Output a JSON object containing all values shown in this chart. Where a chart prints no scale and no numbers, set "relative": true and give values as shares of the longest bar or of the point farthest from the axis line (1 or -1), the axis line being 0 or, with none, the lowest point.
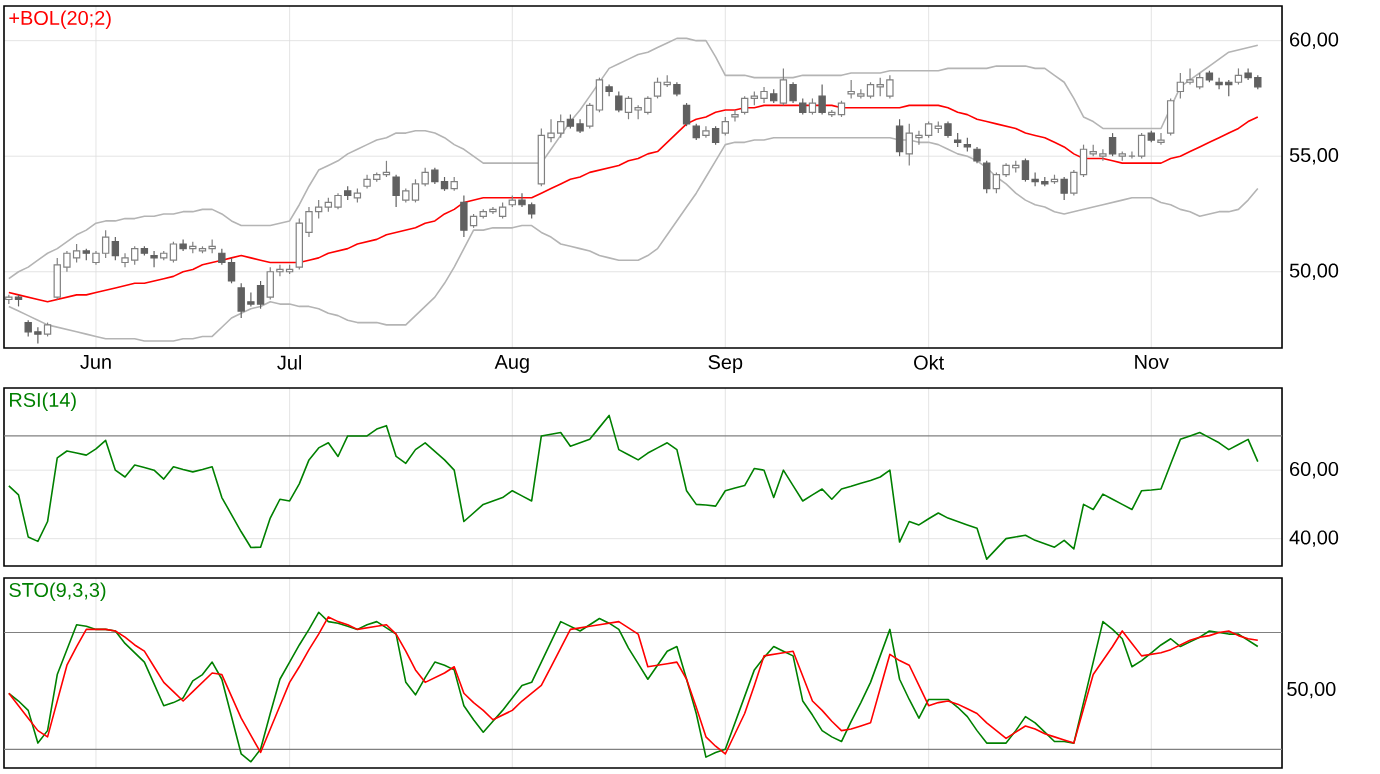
{
  "chart_data": [
    {
      "type": "candlestick",
      "title": "+BOL(20;2)",
      "categories": [
        null,
        null,
        null,
        null,
        null,
        null,
        null,
        null,
        null,
        "Jun",
        null,
        null,
        null,
        null,
        null,
        null,
        null,
        null,
        null,
        null,
        null,
        null,
        null,
        null,
        null,
        null,
        null,
        null,
        null,
        "Jul",
        null,
        null,
        null,
        null,
        null,
        null,
        null,
        null,
        null,
        null,
        null,
        null,
        null,
        null,
        null,
        null,
        null,
        null,
        null,
        null,
        null,
        null,
        "Aug",
        null,
        null,
        null,
        null,
        null,
        null,
        null,
        null,
        null,
        null,
        null,
        null,
        null,
        null,
        null,
        null,
        null,
        null,
        null,
        null,
        null,
        "Sep",
        null,
        null,
        null,
        null,
        null,
        null,
        null,
        null,
        null,
        null,
        null,
        null,
        null,
        null,
        null,
        null,
        null,
        null,
        null,
        null,
        "Okt",
        null,
        null,
        null,
        null,
        null,
        null,
        null,
        null,
        null,
        null,
        null,
        null,
        null,
        null,
        null,
        null,
        null,
        null,
        null,
        null,
        null,
        null,
        "Nov",
        null,
        null,
        null,
        null,
        null,
        null,
        null,
        null,
        null,
        null,
        null
      ],
      "ohlc": [
        [
          48.8,
          49.0,
          48.6,
          48.9
        ],
        [
          48.9,
          49.0,
          48.5,
          48.8
        ],
        [
          47.8,
          47.9,
          47.2,
          47.4
        ],
        [
          47.4,
          47.6,
          46.9,
          47.3
        ],
        [
          47.3,
          47.8,
          47.2,
          47.7
        ],
        [
          48.9,
          50.6,
          48.8,
          50.3
        ],
        [
          50.2,
          50.9,
          50.0,
          50.8
        ],
        [
          50.6,
          51.2,
          50.4,
          50.9
        ],
        [
          50.9,
          51.0,
          50.5,
          50.8
        ],
        [
          50.4,
          50.9,
          50.3,
          50.8
        ],
        [
          50.8,
          51.8,
          50.6,
          51.5
        ],
        [
          51.3,
          51.5,
          50.5,
          50.7
        ],
        [
          50.4,
          50.8,
          50.2,
          50.6
        ],
        [
          50.5,
          51.1,
          50.3,
          51.0
        ],
        [
          51.0,
          51.1,
          50.7,
          50.8
        ],
        [
          50.7,
          50.9,
          50.2,
          50.6
        ],
        [
          50.6,
          50.9,
          50.5,
          50.8
        ],
        [
          50.5,
          51.3,
          50.4,
          51.2
        ],
        [
          51.2,
          51.4,
          50.9,
          51.0
        ],
        [
          51.0,
          51.3,
          50.8,
          51.1
        ],
        [
          50.9,
          51.1,
          50.8,
          51.0
        ],
        [
          51.0,
          51.4,
          50.8,
          51.1
        ],
        [
          50.8,
          51.0,
          50.3,
          50.4
        ],
        [
          50.4,
          50.6,
          49.5,
          49.6
        ],
        [
          49.3,
          49.5,
          48.0,
          48.3
        ],
        [
          48.7,
          49.1,
          48.5,
          48.6
        ],
        [
          49.4,
          49.6,
          48.4,
          48.6
        ],
        [
          48.9,
          50.2,
          48.8,
          50.0
        ],
        [
          50.0,
          50.3,
          49.8,
          50.1
        ],
        [
          50.0,
          50.3,
          49.9,
          50.1
        ],
        [
          50.2,
          52.3,
          50.1,
          52.1
        ],
        [
          51.7,
          52.8,
          51.5,
          52.6
        ],
        [
          52.6,
          53.1,
          52.3,
          52.8
        ],
        [
          52.8,
          53.2,
          52.6,
          53.0
        ],
        [
          52.8,
          53.4,
          52.7,
          53.3
        ],
        [
          53.5,
          53.7,
          53.1,
          53.3
        ],
        [
          53.2,
          53.6,
          53.0,
          53.4
        ],
        [
          53.7,
          54.2,
          53.6,
          54.0
        ],
        [
          54.0,
          54.3,
          53.9,
          54.2
        ],
        [
          54.2,
          54.8,
          54.1,
          54.3
        ],
        [
          54.1,
          54.2,
          52.8,
          53.3
        ],
        [
          53.1,
          53.6,
          53.0,
          53.5
        ],
        [
          53.1,
          54.0,
          53.0,
          53.8
        ],
        [
          53.8,
          54.5,
          53.7,
          54.3
        ],
        [
          54.4,
          54.5,
          53.8,
          53.9
        ],
        [
          53.9,
          54.1,
          53.5,
          53.6
        ],
        [
          53.6,
          54.1,
          53.5,
          53.9
        ],
        [
          53.0,
          53.3,
          51.5,
          51.8
        ],
        [
          52.0,
          52.5,
          51.9,
          52.4
        ],
        [
          52.4,
          52.7,
          52.3,
          52.6
        ],
        [
          52.6,
          52.8,
          52.5,
          52.7
        ],
        [
          52.4,
          53.0,
          52.3,
          52.8
        ],
        [
          52.9,
          53.3,
          52.8,
          53.1
        ],
        [
          53.1,
          53.4,
          52.8,
          52.9
        ],
        [
          52.9,
          53.0,
          52.3,
          52.5
        ],
        [
          53.8,
          56.2,
          53.7,
          55.9
        ],
        [
          55.8,
          56.6,
          55.6,
          56.0
        ],
        [
          56.0,
          56.8,
          55.8,
          56.5
        ],
        [
          56.6,
          56.8,
          56.2,
          56.3
        ],
        [
          56.4,
          56.6,
          56.0,
          56.1
        ],
        [
          56.3,
          57.3,
          56.2,
          57.2
        ],
        [
          57.0,
          58.4,
          56.9,
          58.3
        ],
        [
          58.0,
          58.1,
          57.6,
          57.8
        ],
        [
          57.6,
          57.8,
          56.9,
          57.0
        ],
        [
          56.9,
          57.6,
          56.6,
          57.5
        ],
        [
          57.0,
          57.2,
          56.6,
          57.1
        ],
        [
          56.9,
          57.6,
          56.8,
          57.5
        ],
        [
          57.6,
          58.4,
          57.5,
          58.2
        ],
        [
          58.1,
          58.5,
          58.0,
          58.2
        ],
        [
          58.1,
          58.2,
          57.6,
          57.7
        ],
        [
          57.2,
          57.3,
          56.3,
          56.4
        ],
        [
          56.3,
          56.4,
          55.7,
          55.8
        ],
        [
          55.9,
          56.3,
          55.8,
          56.1
        ],
        [
          56.2,
          56.3,
          55.5,
          55.6
        ],
        [
          56.0,
          56.7,
          55.9,
          56.5
        ],
        [
          56.7,
          57.0,
          56.5,
          56.8
        ],
        [
          56.9,
          57.6,
          56.8,
          57.5
        ],
        [
          57.5,
          57.8,
          57.2,
          57.6
        ],
        [
          57.5,
          58.0,
          57.3,
          57.8
        ],
        [
          57.7,
          57.9,
          57.3,
          57.4
        ],
        [
          57.3,
          58.8,
          57.2,
          58.3
        ],
        [
          58.1,
          58.2,
          57.3,
          57.4
        ],
        [
          57.3,
          57.5,
          56.8,
          56.9
        ],
        [
          56.9,
          57.5,
          56.8,
          57.3
        ],
        [
          57.6,
          58.1,
          56.8,
          56.9
        ],
        [
          56.8,
          57.0,
          56.7,
          56.9
        ],
        [
          56.8,
          57.4,
          56.7,
          57.3
        ],
        [
          57.7,
          58.3,
          57.5,
          57.8
        ],
        [
          57.6,
          57.9,
          57.5,
          57.7
        ],
        [
          57.6,
          58.2,
          57.5,
          58.1
        ],
        [
          58.0,
          58.4,
          57.6,
          58.1
        ],
        [
          57.6,
          58.5,
          57.5,
          58.3
        ],
        [
          56.3,
          56.6,
          55.0,
          55.2
        ],
        [
          55.1,
          56.4,
          54.6,
          56.0
        ],
        [
          55.8,
          56.1,
          55.5,
          55.9
        ],
        [
          55.9,
          56.5,
          55.8,
          56.4
        ],
        [
          56.2,
          56.5,
          56.0,
          56.3
        ],
        [
          56.4,
          56.5,
          55.8,
          55.9
        ],
        [
          55.7,
          56.0,
          55.4,
          55.6
        ],
        [
          55.5,
          55.8,
          55.2,
          55.4
        ],
        [
          55.3,
          55.4,
          54.7,
          54.8
        ],
        [
          54.7,
          54.8,
          53.4,
          53.6
        ],
        [
          53.6,
          54.3,
          53.4,
          54.2
        ],
        [
          54.2,
          54.7,
          54.1,
          54.6
        ],
        [
          54.5,
          54.8,
          54.3,
          54.6
        ],
        [
          54.8,
          54.9,
          53.9,
          54.0
        ],
        [
          54.0,
          54.3,
          53.7,
          53.9
        ],
        [
          53.9,
          54.1,
          53.7,
          53.8
        ],
        [
          53.9,
          54.2,
          53.8,
          54.0
        ],
        [
          54.0,
          54.1,
          53.1,
          53.4
        ],
        [
          53.4,
          54.4,
          53.3,
          54.3
        ],
        [
          54.2,
          55.5,
          54.1,
          55.3
        ],
        [
          55.1,
          55.5,
          55.0,
          55.2
        ],
        [
          55.0,
          55.3,
          54.8,
          55.1
        ],
        [
          55.8,
          56.0,
          55.0,
          55.1
        ],
        [
          55.0,
          55.2,
          54.8,
          55.1
        ],
        [
          55.0,
          55.2,
          54.9,
          55.0
        ],
        [
          55.0,
          56.0,
          54.9,
          55.9
        ],
        [
          56.0,
          56.1,
          55.6,
          55.7
        ],
        [
          55.6,
          56.0,
          55.5,
          55.7
        ],
        [
          56.0,
          57.5,
          55.9,
          57.4
        ],
        [
          57.8,
          58.6,
          57.5,
          58.2
        ],
        [
          58.2,
          58.8,
          58.1,
          58.3
        ],
        [
          58.0,
          58.6,
          57.9,
          58.4
        ],
        [
          58.6,
          58.7,
          58.2,
          58.3
        ],
        [
          58.2,
          58.4,
          57.9,
          58.1
        ],
        [
          58.2,
          58.3,
          57.6,
          58.1
        ],
        [
          58.2,
          58.8,
          58.1,
          58.5
        ],
        [
          58.6,
          58.8,
          58.3,
          58.4
        ],
        [
          58.4,
          58.5,
          57.9,
          58.0
        ]
      ],
      "series": [
        {
          "type": "line",
          "color": "#b4b4b4",
          "values": [
            49.7,
            50.0,
            50.2,
            50.5,
            50.8,
            51.0,
            51.3,
            51.6,
            51.8,
            52.1,
            52.2,
            52.2,
            52.3,
            52.3,
            52.4,
            52.4,
            52.5,
            52.5,
            52.6,
            52.6,
            52.7,
            52.7,
            52.5,
            52.2,
            52.0,
            52.0,
            52.0,
            52.0,
            52.1,
            52.2,
            52.9,
            53.7,
            54.4,
            54.6,
            54.8,
            55.1,
            55.3,
            55.5,
            55.7,
            55.8,
            56.0,
            56.0,
            56.1,
            56.1,
            56.0,
            55.8,
            55.5,
            55.3,
            55.0,
            54.7,
            54.7,
            54.7,
            54.7,
            54.7,
            54.7,
            54.7,
            55.3,
            55.9,
            56.5,
            57.0,
            57.6,
            58.2,
            58.8,
            59.0,
            59.2,
            59.4,
            59.5,
            59.7,
            59.9,
            60.1,
            60.1,
            60.0,
            60.0,
            59.3,
            58.5,
            58.5,
            58.5,
            58.4,
            58.4,
            58.4,
            58.4,
            58.4,
            58.5,
            58.5,
            58.5,
            58.5,
            58.5,
            58.6,
            58.6,
            58.6,
            58.6,
            58.7,
            58.7,
            58.7,
            58.7,
            58.7,
            58.7,
            58.8,
            58.8,
            58.8,
            58.8,
            58.8,
            58.9,
            58.9,
            58.9,
            58.9,
            58.8,
            58.8,
            58.5,
            58.2,
            57.5,
            56.7,
            56.5,
            56.2,
            56.2,
            56.2,
            56.2,
            56.2,
            56.2,
            56.2,
            57.1,
            58.0,
            58.3,
            58.6,
            58.9,
            59.2,
            59.5,
            59.6,
            59.7,
            59.8
          ]
        },
        {
          "type": "line",
          "color": "#ff0000",
          "values": [
            49.1,
            49.0,
            48.9,
            48.8,
            48.7,
            48.8,
            48.9,
            49.0,
            49.0,
            49.1,
            49.2,
            49.3,
            49.4,
            49.5,
            49.5,
            49.6,
            49.7,
            49.8,
            50.0,
            50.1,
            50.3,
            50.4,
            50.5,
            50.6,
            50.7,
            50.6,
            50.5,
            50.4,
            50.4,
            50.4,
            50.4,
            50.5,
            50.6,
            50.8,
            50.9,
            51.0,
            51.2,
            51.3,
            51.4,
            51.6,
            51.7,
            51.8,
            51.9,
            52.1,
            52.2,
            52.5,
            52.7,
            53.0,
            53.1,
            53.2,
            53.2,
            53.2,
            53.2,
            53.2,
            53.2,
            53.4,
            53.6,
            53.8,
            54.0,
            54.1,
            54.3,
            54.4,
            54.5,
            54.6,
            54.8,
            54.9,
            55.1,
            55.2,
            55.6,
            56.0,
            56.4,
            56.6,
            56.7,
            56.9,
            57.0,
            57.0,
            57.1,
            57.1,
            57.2,
            57.2,
            57.2,
            57.2,
            57.2,
            57.2,
            57.2,
            57.2,
            57.1,
            57.1,
            57.1,
            57.1,
            57.1,
            57.1,
            57.1,
            57.2,
            57.2,
            57.2,
            57.2,
            57.1,
            56.9,
            56.8,
            56.6,
            56.5,
            56.4,
            56.3,
            56.2,
            56.0,
            55.9,
            55.8,
            55.6,
            55.4,
            55.1,
            54.9,
            54.9,
            54.9,
            54.8,
            54.7,
            54.7,
            54.7,
            54.7,
            54.7,
            54.9,
            55.0,
            55.2,
            55.4,
            55.6,
            55.8,
            56.0,
            56.2,
            56.5,
            56.7
          ]
        },
        {
          "type": "line",
          "color": "#b4b4b4",
          "values": [
            48.5,
            48.3,
            48.1,
            47.9,
            47.7,
            47.6,
            47.5,
            47.4,
            47.3,
            47.2,
            47.1,
            47.1,
            47.1,
            47.1,
            47.0,
            47.0,
            47.0,
            47.0,
            47.1,
            47.1,
            47.2,
            47.2,
            47.6,
            48.0,
            48.2,
            48.4,
            48.5,
            48.7,
            48.6,
            48.6,
            48.5,
            48.5,
            48.4,
            48.2,
            48.1,
            47.9,
            47.8,
            47.8,
            47.8,
            47.7,
            47.7,
            47.7,
            48.1,
            48.5,
            48.9,
            49.5,
            50.2,
            51.0,
            51.8,
            51.8,
            51.9,
            51.9,
            51.9,
            52.0,
            52.0,
            51.7,
            51.5,
            51.2,
            51.1,
            51.0,
            50.9,
            50.7,
            50.6,
            50.5,
            50.5,
            50.5,
            50.7,
            51.0,
            51.6,
            52.2,
            52.8,
            53.4,
            54.1,
            54.8,
            55.5,
            55.6,
            55.6,
            55.7,
            55.7,
            55.8,
            55.8,
            55.8,
            55.8,
            55.8,
            55.8,
            55.8,
            55.8,
            55.8,
            55.8,
            55.8,
            55.8,
            55.8,
            55.7,
            55.7,
            55.6,
            55.6,
            55.5,
            55.3,
            55.1,
            55.0,
            54.8,
            54.5,
            54.1,
            53.8,
            53.4,
            53.1,
            52.9,
            52.8,
            52.6,
            52.5,
            52.6,
            52.7,
            52.8,
            52.9,
            53.0,
            53.1,
            53.2,
            53.2,
            53.2,
            53.0,
            52.9,
            52.7,
            52.6,
            52.4,
            52.5,
            52.6,
            52.6,
            52.7,
            53.1,
            53.6
          ]
        }
      ],
      "ylim": [
        46.7,
        61.5
      ],
      "yticks": [
        {
          "value": 50,
          "label": "50,00"
        },
        {
          "value": 55,
          "label": "55,00"
        },
        {
          "value": 60,
          "label": "60,00"
        }
      ],
      "grid": true
    },
    {
      "type": "line",
      "title": "RSI(14)",
      "categories": [
        null,
        null,
        null,
        null,
        null,
        null,
        null,
        null,
        null,
        null,
        null,
        null,
        null,
        null,
        null,
        null,
        null,
        null,
        null,
        null,
        null,
        null,
        null,
        null,
        null,
        null,
        null,
        null,
        null,
        null,
        null,
        null,
        null,
        null,
        null,
        null,
        null,
        null,
        null,
        null,
        null,
        null,
        null,
        null,
        null,
        null,
        null,
        null,
        null,
        null,
        null,
        null,
        null,
        null,
        null,
        null,
        null,
        null,
        null,
        null,
        null,
        null,
        null,
        null,
        null,
        null,
        null,
        null,
        null,
        null,
        null,
        null,
        null,
        null,
        null,
        null,
        null,
        null,
        null,
        null,
        null,
        null,
        null,
        null,
        null,
        null,
        null,
        null,
        null,
        null,
        null,
        null,
        null,
        null,
        null,
        null,
        null,
        null,
        null,
        null,
        null,
        null,
        null,
        null,
        null,
        null,
        null,
        null,
        null,
        null,
        null,
        null,
        null,
        null,
        null,
        null,
        null,
        null,
        null,
        null,
        null,
        null,
        null,
        null,
        null,
        null,
        null,
        null,
        null,
        null
      ],
      "series": [
        {
          "color": "#008000",
          "values": [
            55.4,
            52.8,
            40.5,
            39.2,
            45,
            63.6,
            65.6,
            65.0,
            64.4,
            66.2,
            68.7,
            60,
            58,
            61.5,
            60.8,
            60,
            57.4,
            61,
            60.2,
            59.5,
            60.2,
            61,
            52,
            47,
            42,
            37.4,
            37.5,
            46,
            51.5,
            51,
            56,
            63,
            66.5,
            68,
            64,
            70,
            70,
            70,
            72,
            73,
            64,
            62,
            66,
            68,
            65.5,
            63,
            60,
            45,
            47.5,
            50,
            51,
            52,
            54,
            52.5,
            51,
            70,
            70.5,
            71,
            67,
            68,
            69,
            72.5,
            76,
            66,
            64.5,
            63,
            65,
            66.5,
            68,
            66,
            54,
            50,
            49.8,
            49.5,
            54,
            54.8,
            55.5,
            60.5,
            60,
            52,
            60,
            55.5,
            51,
            52.8,
            54.5,
            51.5,
            54.5,
            55.3,
            56.2,
            57,
            58,
            60,
            39,
            45,
            44,
            45.8,
            47.5,
            46,
            45,
            44,
            43,
            34,
            37,
            40,
            40.5,
            41,
            39.5,
            38.5,
            37.5,
            39.5,
            37,
            50,
            48.5,
            53,
            51.5,
            50,
            48.5,
            54,
            54.2,
            54.5,
            61.8,
            69,
            70,
            71,
            69.5,
            68,
            66,
            67.5,
            69,
            62.5
          ]
        }
      ],
      "ylim": [
        32,
        84
      ],
      "yticks": [
        {
          "value": 40,
          "label": "40,00"
        },
        {
          "value": 60,
          "label": "60,00"
        }
      ],
      "ref_lines": [
        {
          "axis": "y",
          "value": 70,
          "color": "#808080"
        }
      ],
      "tick_labels": "y",
      "grid": true
    },
    {
      "type": "line",
      "title": "STO(9,3,3)",
      "relative": true,
      "categories": [
        null,
        null,
        null,
        null,
        null,
        null,
        null,
        null,
        null,
        null,
        null,
        null,
        null,
        null,
        null,
        null,
        null,
        null,
        null,
        null,
        null,
        null,
        null,
        null,
        null,
        null,
        null,
        null,
        null,
        null,
        null,
        null,
        null,
        null,
        null,
        null,
        null,
        null,
        null,
        null,
        null,
        null,
        null,
        null,
        null,
        null,
        null,
        null,
        null,
        null,
        null,
        null,
        null,
        null,
        null,
        null,
        null,
        null,
        null,
        null,
        null,
        null,
        null,
        null,
        null,
        null,
        null,
        null,
        null,
        null,
        null,
        null,
        null,
        null,
        null,
        null,
        null,
        null,
        null,
        null,
        null,
        null,
        null,
        null,
        null,
        null,
        null,
        null,
        null,
        null,
        null,
        null,
        null,
        null,
        null,
        null,
        null,
        null,
        null,
        null,
        null,
        null,
        null,
        null,
        null,
        null,
        null,
        null,
        null,
        null,
        null,
        null,
        null,
        null,
        null,
        null,
        null,
        null,
        null,
        null,
        null,
        null,
        null,
        null,
        null,
        null,
        null,
        null,
        null,
        null
      ],
      "series": [
        {
          "color": "#008000",
          "values": [
            0.48,
            0.43,
            0.37,
            0.16,
            0.24,
            0.6,
            0.76,
            0.92,
            0.91,
            0.89,
            0.89,
            0.88,
            0.8,
            0.74,
            0.68,
            0.54,
            0.4,
            0.42,
            0.45,
            0.56,
            0.6,
            0.68,
            0.57,
            0.33,
            0.09,
            0.04,
            0.12,
            0.35,
            0.57,
            0.68,
            0.79,
            0.89,
            1.0,
            0.94,
            0.93,
            0.91,
            0.89,
            0.92,
            0.94,
            0.9,
            0.86,
            0.55,
            0.47,
            0.58,
            0.68,
            0.66,
            0.63,
            0.4,
            0.31,
            0.23,
            0.3,
            0.37,
            0.45,
            0.53,
            0.55,
            0.68,
            0.81,
            0.94,
            0.91,
            0.88,
            0.92,
            0.96,
            0.93,
            0.89,
            0.77,
            0.67,
            0.57,
            0.66,
            0.75,
            0.78,
            0.57,
            0.35,
            0.07,
            0.1,
            0.12,
            0.29,
            0.46,
            0.63,
            0.71,
            0.78,
            0.75,
            0.72,
            0.43,
            0.34,
            0.24,
            0.2,
            0.17,
            0.3,
            0.42,
            0.55,
            0.72,
            0.89,
            0.57,
            0.44,
            0.32,
            0.44,
            0.44,
            0.44,
            0.39,
            0.33,
            0.24,
            0.16,
            0.16,
            0.16,
            0.24,
            0.33,
            0.29,
            0.23,
            0.17,
            0.17,
            0.16,
            0.42,
            0.68,
            0.94,
            0.89,
            0.83,
            0.65,
            0.69,
            0.74,
            0.79,
            0.83,
            0.78,
            0.81,
            0.84,
            0.88,
            0.87,
            0.86,
            0.86,
            0.82,
            0.78
          ]
        },
        {
          "color": "#ff0000",
          "values": [
            0.48,
            0.4,
            0.32,
            0.24,
            0.2,
            0.43,
            0.66,
            0.78,
            0.89,
            0.89,
            0.89,
            0.88,
            0.84,
            0.79,
            0.75,
            0.65,
            0.55,
            0.49,
            0.43,
            0.49,
            0.55,
            0.61,
            0.6,
            0.46,
            0.32,
            0.21,
            0.1,
            0.25,
            0.4,
            0.55,
            0.65,
            0.76,
            0.86,
            0.97,
            0.94,
            0.92,
            0.89,
            0.9,
            0.91,
            0.92,
            0.86,
            0.75,
            0.63,
            0.55,
            0.58,
            0.61,
            0.65,
            0.48,
            0.42,
            0.37,
            0.31,
            0.34,
            0.37,
            0.43,
            0.48,
            0.53,
            0.65,
            0.77,
            0.89,
            0.9,
            0.91,
            0.92,
            0.93,
            0.94,
            0.9,
            0.86,
            0.65,
            0.66,
            0.67,
            0.68,
            0.57,
            0.39,
            0.2,
            0.14,
            0.09,
            0.22,
            0.35,
            0.53,
            0.72,
            0.73,
            0.74,
            0.75,
            0.59,
            0.43,
            0.37,
            0.3,
            0.24,
            0.25,
            0.27,
            0.29,
            0.51,
            0.73,
            0.69,
            0.66,
            0.53,
            0.4,
            0.42,
            0.43,
            0.41,
            0.38,
            0.35,
            0.29,
            0.24,
            0.19,
            0.23,
            0.27,
            0.25,
            0.22,
            0.2,
            0.18,
            0.16,
            0.38,
            0.6,
            0.69,
            0.78,
            0.88,
            0.8,
            0.72,
            0.73,
            0.74,
            0.76,
            0.79,
            0.82,
            0.84,
            0.85,
            0.87,
            0.88,
            0.85,
            0.83,
            0.82
          ]
        }
      ],
      "ref_lines": [
        {
          "axis": "y",
          "value": 0.87,
          "color": "#808080"
        },
        {
          "axis": "y",
          "value": 0.12,
          "color": "#808080"
        }
      ],
      "annotations": [
        "50,00"
      ],
      "tick_labels": "y",
      "grid": "x"
    }
  ]
}
